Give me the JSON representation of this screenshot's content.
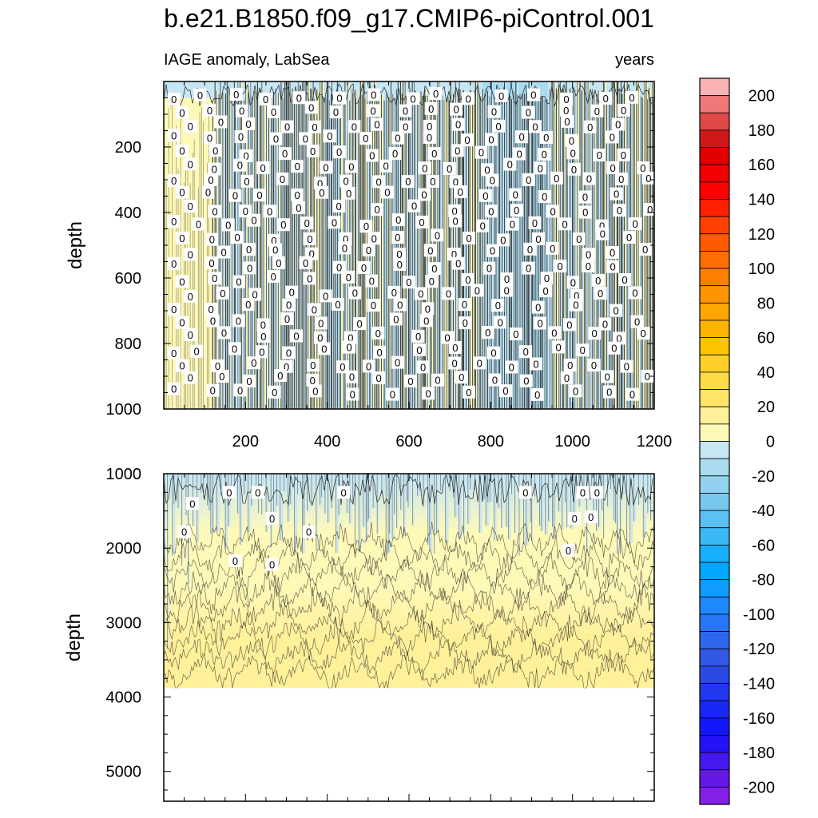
{
  "title": "b.e21.B1850.f09_g17.CMIP6-piControl.001",
  "subtitle_left": "IAGE anomaly, LabSea",
  "subtitle_right": "years",
  "colors": {
    "zero_contour_label_bg": "#ffffff",
    "contour_line": "#222222",
    "frame": "#000000"
  },
  "chart_data": {
    "type": "heatmap",
    "title": "b.e21.B1850.f09_g17.CMIP6-piControl.001",
    "subtitle": "IAGE anomaly, LabSea",
    "units": "years",
    "x_range": [
      0,
      1200
    ],
    "x_ticks": [
      200,
      400,
      600,
      800,
      1000,
      1200
    ],
    "panels": [
      {
        "name": "upper",
        "ylabel": "depth",
        "ylim": [
          0,
          1000
        ],
        "yticks": [
          200,
          400,
          600,
          800,
          1000
        ],
        "xticks_labeled": true,
        "contour_label": "0",
        "regions": [
          {
            "x": [
              0,
              120
            ],
            "depth": [
              50,
              1000
            ],
            "value": 5
          },
          {
            "x": [
              120,
              780
            ],
            "depth": [
              0,
              1000
            ],
            "value": -5
          },
          {
            "x": [
              780,
              940
            ],
            "depth": [
              0,
              1000
            ],
            "value": -10
          },
          {
            "x": [
              940,
              1200
            ],
            "depth": [
              0,
              1000
            ],
            "value": -5
          }
        ]
      },
      {
        "name": "lower",
        "ylabel": "depth",
        "ylim": [
          1000,
          5400
        ],
        "yticks": [
          1000,
          2000,
          3000,
          4000,
          5000
        ],
        "xticks_labeled": false,
        "contour_label": "0",
        "data_bottom_depth": 3880,
        "depth_profile": [
          {
            "depth": 1000,
            "value": -5
          },
          {
            "depth": 1800,
            "value": 2
          },
          {
            "depth": 2500,
            "value": 6
          },
          {
            "depth": 3200,
            "value": 12
          },
          {
            "depth": 3880,
            "value": 18
          }
        ]
      }
    ],
    "colorbar": {
      "min": -210,
      "max": 210,
      "step": 10,
      "tick_labels": [
        "200",
        "180",
        "160",
        "140",
        "120",
        "100",
        "80",
        "60",
        "40",
        "20",
        "0",
        "-20",
        "-40",
        "-60",
        "-80",
        "-100",
        "-120",
        "-140",
        "-160",
        "-180",
        "-200"
      ],
      "colors_top_to_bottom": [
        "#f9b3b3",
        "#f07878",
        "#e04848",
        "#d01818",
        "#e00000",
        "#f00000",
        "#ff0000",
        "#ff2000",
        "#ff4000",
        "#ff5a00",
        "#ff6e00",
        "#ff8000",
        "#ff9400",
        "#ffa600",
        "#ffb400",
        "#ffc400",
        "#ffd02a",
        "#ffdc48",
        "#ffe468",
        "#fff09a",
        "#fff9b8",
        "#c6e6f4",
        "#aadcf0",
        "#92d2ee",
        "#78c8ee",
        "#5cc0f2",
        "#3ab8f6",
        "#18b0fa",
        "#00a8ff",
        "#0e9cff",
        "#1e88ff",
        "#2876f6",
        "#2e66ee",
        "#3458e6",
        "#2a48e4",
        "#2238ee",
        "#1a28f4",
        "#1218fa",
        "#2412f6",
        "#4418ee",
        "#6418e6",
        "#8420e8"
      ]
    }
  }
}
